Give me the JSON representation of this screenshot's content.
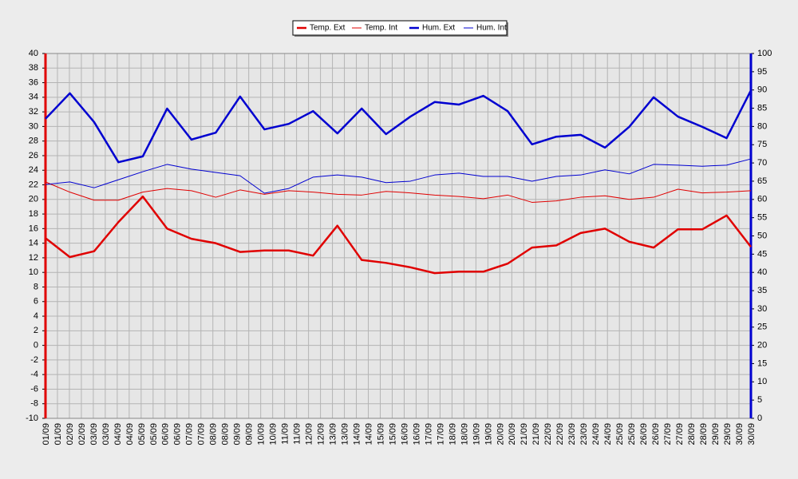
{
  "chart_data": {
    "type": "line",
    "xtick_labels": [
      "01/09",
      "01/09",
      "02/09",
      "02/09",
      "03/09",
      "03/09",
      "04/09",
      "04/09",
      "05/09",
      "05/09",
      "06/09",
      "06/09",
      "07/09",
      "07/09",
      "08/09",
      "08/09",
      "09/09",
      "09/09",
      "10/09",
      "10/09",
      "11/09",
      "11/09",
      "12/09",
      "12/09",
      "13/09",
      "13/09",
      "14/09",
      "14/09",
      "15/09",
      "15/09",
      "16/09",
      "16/09",
      "17/09",
      "17/09",
      "18/09",
      "18/09",
      "19/09",
      "19/09",
      "20/09",
      "20/09",
      "21/09",
      "21/09",
      "22/09",
      "22/09",
      "23/09",
      "23/09",
      "24/09",
      "24/09",
      "25/09",
      "25/09",
      "26/09",
      "26/09",
      "27/09",
      "27/09",
      "28/09",
      "28/09",
      "29/09",
      "29/09",
      "30/09",
      "30/09"
    ],
    "series": [
      {
        "name": "Temp. Ext",
        "color": "#e00000",
        "width": 2.5,
        "axis": "y",
        "values": [
          14.7,
          12.1,
          12.9,
          16.9,
          20.4,
          16.0,
          14.6,
          14.0,
          12.8,
          13.0,
          13.0,
          12.3,
          16.4,
          11.7,
          11.3,
          10.7,
          9.9,
          10.1,
          10.1,
          11.2,
          13.4,
          13.7,
          15.4,
          16.0,
          14.2,
          13.4,
          15.9,
          15.9,
          17.8,
          13.5
        ]
      },
      {
        "name": "Temp. Int",
        "color": "#e00000",
        "width": 1,
        "axis": "y",
        "values": [
          22.4,
          21.0,
          19.9,
          19.9,
          21.0,
          21.5,
          21.2,
          20.3,
          21.3,
          20.7,
          21.2,
          21.0,
          20.7,
          20.6,
          21.1,
          20.9,
          20.6,
          20.4,
          20.1,
          20.6,
          19.6,
          19.8,
          20.3,
          20.5,
          20.0,
          20.3,
          21.4,
          20.9,
          21.0,
          21.2
        ]
      },
      {
        "name": "Hum. Ext",
        "color": "#0000d0",
        "width": 2.5,
        "axis": "y2",
        "values": [
          82.1,
          89.1,
          81.2,
          70.2,
          71.8,
          84.9,
          76.4,
          78.3,
          88.2,
          79.2,
          80.7,
          84.2,
          78.1,
          84.9,
          77.9,
          82.7,
          86.7,
          86.0,
          88.4,
          84.2,
          75.1,
          77.2,
          77.7,
          74.2,
          79.9,
          88.0,
          82.7,
          79.9,
          76.8,
          89.9
        ]
      },
      {
        "name": "Hum. Int",
        "color": "#0000d0",
        "width": 1,
        "axis": "y2",
        "values": [
          64.1,
          64.8,
          63.2,
          65.4,
          67.6,
          69.6,
          68.3,
          67.4,
          66.5,
          61.7,
          63.0,
          66.1,
          66.7,
          66.1,
          64.6,
          65.0,
          66.7,
          67.2,
          66.3,
          66.3,
          65.0,
          66.3,
          66.7,
          68.1,
          67.0,
          69.6,
          69.4,
          69.1,
          69.4,
          71.1
        ]
      }
    ],
    "ylim": [
      -10,
      40
    ],
    "yticks": [
      -10,
      -8,
      -6,
      -4,
      -2,
      0,
      2,
      4,
      6,
      8,
      10,
      12,
      14,
      16,
      18,
      20,
      22,
      24,
      26,
      28,
      30,
      32,
      34,
      36,
      38,
      40
    ],
    "y2lim": [
      0,
      100
    ],
    "y2ticks": [
      0,
      5,
      10,
      15,
      20,
      25,
      30,
      35,
      40,
      45,
      50,
      55,
      60,
      65,
      70,
      75,
      80,
      85,
      90,
      95,
      100
    ],
    "grid": true,
    "legend": "top"
  }
}
